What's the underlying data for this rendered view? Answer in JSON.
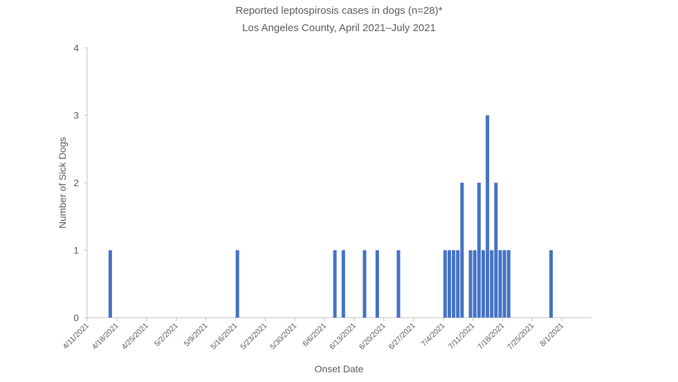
{
  "chart_data": {
    "type": "bar",
    "title": "Reported leptospirosis cases in dogs (n=28)*",
    "subtitle": "Los Angeles County, April 2021–July 2021",
    "xlabel": "Onset Date",
    "ylabel": "Number of Sick Dogs",
    "ylim": [
      0,
      4
    ],
    "yticks": [
      "0",
      "1",
      "2",
      "3",
      "4"
    ],
    "xlim": [
      "2021-04-11",
      "2021-08-08"
    ],
    "xtick_labels": [
      "4/11/2021",
      "4/18/2021",
      "4/25/2021",
      "5/2/2021",
      "5/9/2021",
      "5/16/2021",
      "5/23/2021",
      "5/30/2021",
      "6/6/2021",
      "6/13/2021",
      "6/20/2021",
      "6/27/2021",
      "7/4/2021",
      "7/11/2021",
      "7/18/2021",
      "7/25/2021",
      "8/1/2021"
    ],
    "grid": false,
    "bar_color": "#4472C4",
    "points": [
      {
        "date": "2021-04-16",
        "value": 1
      },
      {
        "date": "2021-05-16",
        "value": 1
      },
      {
        "date": "2021-06-08",
        "value": 1
      },
      {
        "date": "2021-06-10",
        "value": 1
      },
      {
        "date": "2021-06-15",
        "value": 1
      },
      {
        "date": "2021-06-18",
        "value": 1
      },
      {
        "date": "2021-06-23",
        "value": 1
      },
      {
        "date": "2021-07-04",
        "value": 1
      },
      {
        "date": "2021-07-05",
        "value": 1
      },
      {
        "date": "2021-07-06",
        "value": 1
      },
      {
        "date": "2021-07-07",
        "value": 1
      },
      {
        "date": "2021-07-08",
        "value": 2
      },
      {
        "date": "2021-07-10",
        "value": 1
      },
      {
        "date": "2021-07-11",
        "value": 1
      },
      {
        "date": "2021-07-12",
        "value": 2
      },
      {
        "date": "2021-07-13",
        "value": 1
      },
      {
        "date": "2021-07-14",
        "value": 3
      },
      {
        "date": "2021-07-15",
        "value": 1
      },
      {
        "date": "2021-07-16",
        "value": 2
      },
      {
        "date": "2021-07-17",
        "value": 1
      },
      {
        "date": "2021-07-18",
        "value": 1
      },
      {
        "date": "2021-07-19",
        "value": 1
      },
      {
        "date": "2021-07-29",
        "value": 1
      }
    ]
  }
}
